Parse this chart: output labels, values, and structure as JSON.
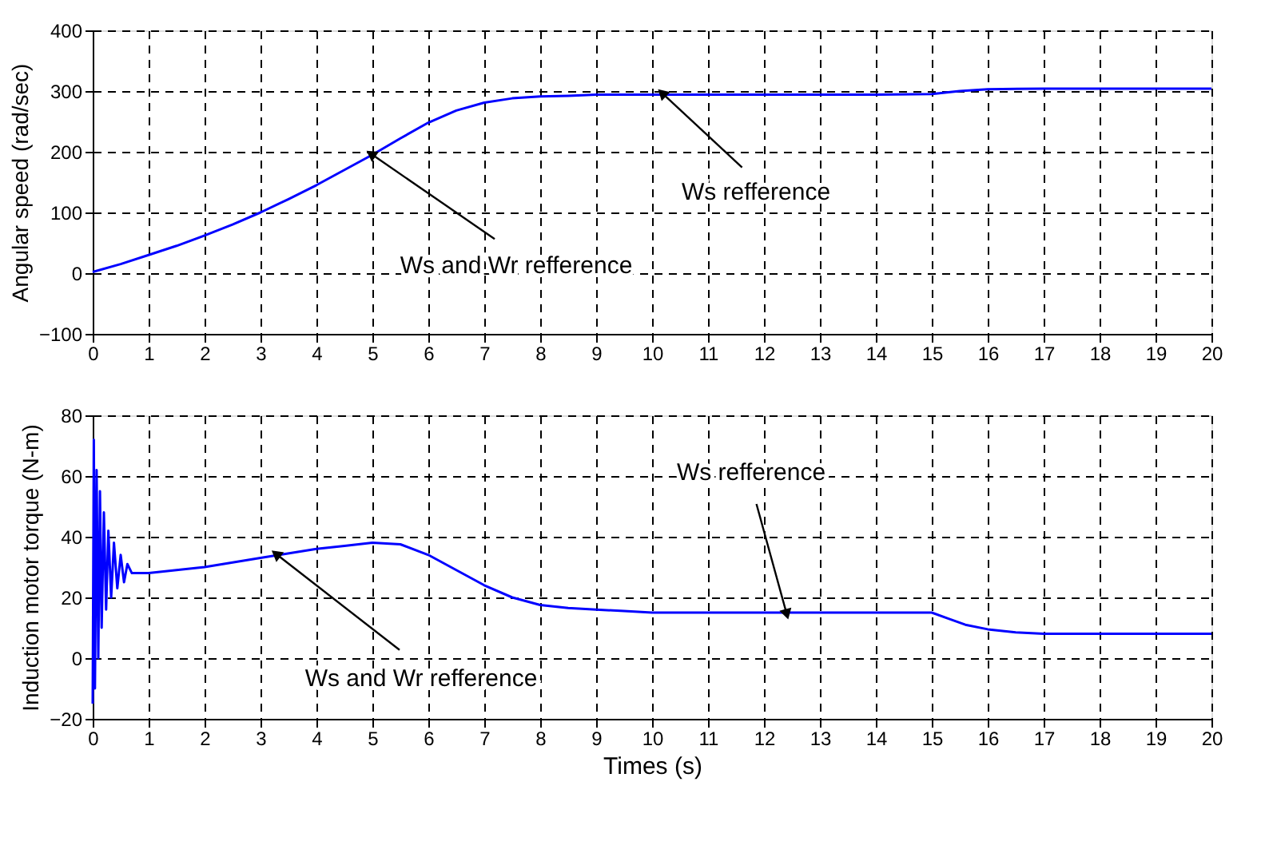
{
  "chart_data": [
    {
      "type": "line",
      "ylabel": "Angular speed (rad/sec)",
      "xlim": [
        0,
        20
      ],
      "xticks": [
        0,
        1,
        2,
        3,
        4,
        5,
        6,
        7,
        8,
        9,
        10,
        11,
        12,
        13,
        14,
        15,
        16,
        17,
        18,
        19,
        20
      ],
      "ylim": [
        -100,
        400
      ],
      "yticks": [
        -100,
        0,
        100,
        200,
        300,
        400
      ],
      "grid": true,
      "series": [
        {
          "color": "#0000ff",
          "x": [
            0,
            0.5,
            1,
            1.5,
            2,
            2.5,
            3,
            3.5,
            4,
            4.5,
            5,
            5.5,
            6,
            6.5,
            7,
            7.5,
            8,
            8.5,
            9,
            10,
            12,
            14,
            15,
            15.5,
            16,
            17,
            20
          ],
          "values": [
            2,
            15,
            30,
            45,
            62,
            80,
            100,
            122,
            145,
            170,
            195,
            222,
            248,
            268,
            281,
            288,
            291,
            292,
            294,
            294,
            294,
            294,
            295,
            300,
            303,
            304,
            304
          ]
        }
      ],
      "annotations": [
        {
          "text": "Ws and Wr refference",
          "x": 5,
          "y": 195
        },
        {
          "text": "Ws refference",
          "x": 10.2,
          "y": 295
        }
      ]
    },
    {
      "type": "line",
      "xlabel": "Times (s)",
      "ylabel": "Induction motor torque (N-m)",
      "xlim": [
        0,
        20
      ],
      "xticks": [
        0,
        1,
        2,
        3,
        4,
        5,
        6,
        7,
        8,
        9,
        10,
        11,
        12,
        13,
        14,
        15,
        16,
        17,
        18,
        19,
        20
      ],
      "ylim": [
        -20,
        80
      ],
      "yticks": [
        -20,
        0,
        20,
        40,
        60,
        80
      ],
      "grid": true,
      "series": [
        {
          "color": "#0000ff",
          "x": [
            0,
            0.02,
            0.04,
            0.07,
            0.1,
            0.13,
            0.16,
            0.2,
            0.24,
            0.28,
            0.33,
            0.38,
            0.44,
            0.5,
            0.56,
            0.62,
            0.7,
            1,
            2,
            3,
            4,
            4.5,
            5,
            5.5,
            6,
            6.5,
            7,
            7.5,
            8,
            8.5,
            9,
            9.5,
            10,
            14,
            15,
            15.3,
            15.6,
            16,
            16.5,
            17,
            20
          ],
          "values": [
            -15,
            72,
            -10,
            62,
            0,
            55,
            10,
            48,
            16,
            42,
            20,
            38,
            23,
            34,
            25,
            31,
            28,
            28,
            30,
            33,
            36,
            37,
            38,
            37.5,
            34,
            29,
            24,
            20,
            17.5,
            16.5,
            16,
            15.5,
            15,
            15,
            15,
            13,
            11,
            9.5,
            8.5,
            8,
            8
          ]
        }
      ],
      "annotations": [
        {
          "text": "Ws and Wr refference",
          "x": 3.3,
          "y": 34
        },
        {
          "text": "Ws refference",
          "x": 12.4,
          "y": 15
        }
      ]
    }
  ]
}
